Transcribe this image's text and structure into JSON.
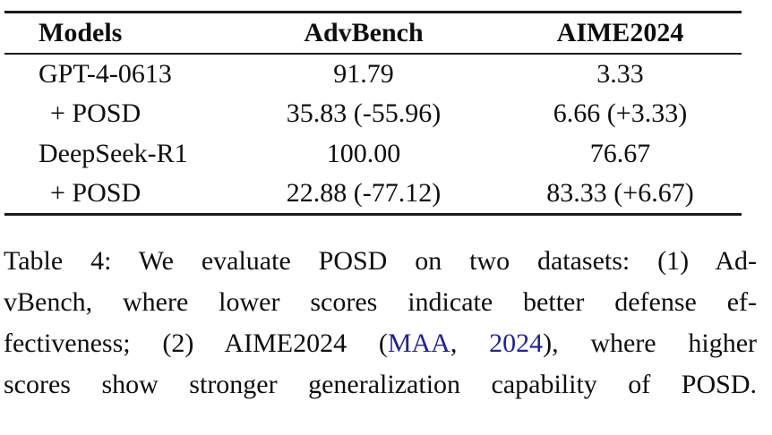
{
  "table": {
    "headers": [
      "Models",
      "AdvBench",
      "AIME2024"
    ],
    "rows": [
      {
        "model": "GPT-4-0613",
        "advbench": "91.79",
        "aime2024": "3.33"
      },
      {
        "model": "+ POSD",
        "advbench": "35.83 (-55.96)",
        "aime2024": "6.66 (+3.33)"
      },
      {
        "model": "DeepSeek-R1",
        "advbench": "100.00",
        "aime2024": "76.67"
      },
      {
        "model": "+ POSD",
        "advbench": "22.88 (-77.12)",
        "aime2024": "83.33 (+6.67)"
      }
    ]
  },
  "caption": {
    "lines": [
      {
        "segments": [
          {
            "text": "Table 4: We evaluate POSD on two datasets: (1) Ad-",
            "style": "text"
          }
        ]
      },
      {
        "segments": [
          {
            "text": "vBench, where lower scores indicate better defense ef-",
            "style": "text"
          }
        ]
      },
      {
        "segments": [
          {
            "text": "fectiveness; (2) AIME2024 (",
            "style": "text"
          },
          {
            "text": "MAA",
            "style": "link"
          },
          {
            "text": ", ",
            "style": "text"
          },
          {
            "text": "2024",
            "style": "link"
          },
          {
            "text": "), where higher",
            "style": "text"
          }
        ]
      },
      {
        "segments": [
          {
            "text": "scores show stronger generalization capability of POSD.",
            "style": "text"
          }
        ]
      }
    ]
  },
  "colors": {
    "text": "#0e0e0e",
    "citation_link": "#232391",
    "rule": "#1b1b1b",
    "background": "#ffffff"
  }
}
